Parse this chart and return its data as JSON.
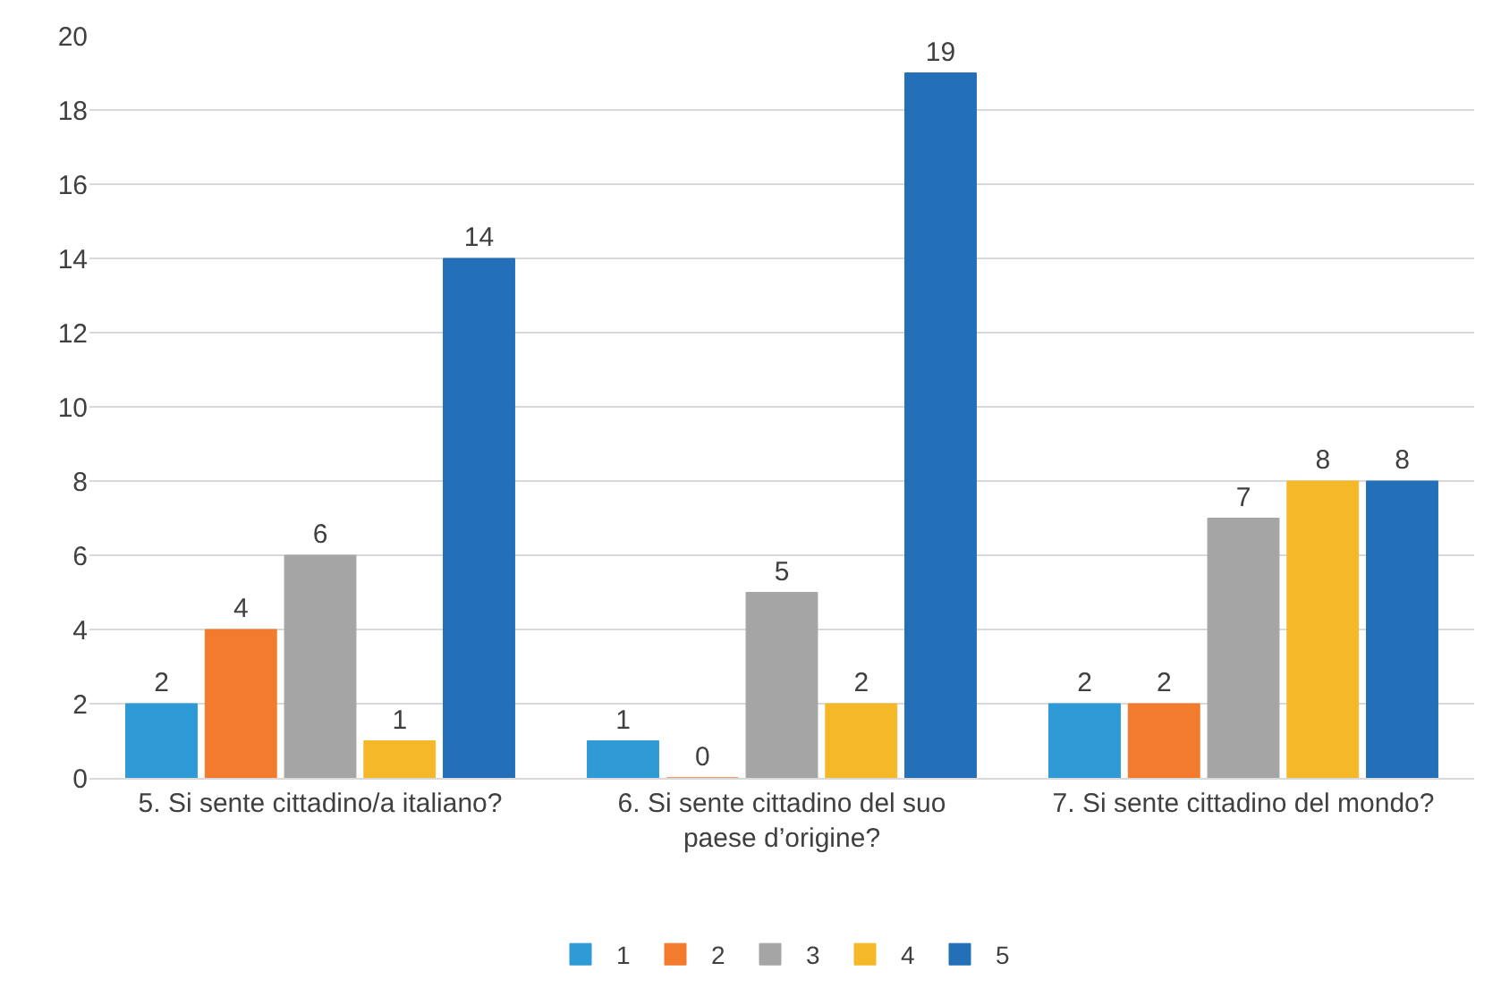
{
  "chart_data": {
    "type": "bar",
    "categories": [
      "5. Si sente cittadino/a italiano?",
      "6. Si sente cittadino del suo paese d’origine?",
      "7. Si sente cittadino del mondo?"
    ],
    "series": [
      {
        "name": "1",
        "color": "#2e9bd6",
        "values": [
          2,
          1,
          2
        ]
      },
      {
        "name": "2",
        "color": "#f27b2e",
        "values": [
          4,
          0,
          2
        ]
      },
      {
        "name": "3",
        "color": "#a5a5a5",
        "values": [
          6,
          5,
          7
        ]
      },
      {
        "name": "4",
        "color": "#f5b828",
        "values": [
          1,
          2,
          8
        ]
      },
      {
        "name": "5",
        "color": "#2470b8",
        "values": [
          14,
          19,
          8
        ]
      }
    ],
    "ylim": [
      0,
      20
    ],
    "yticks": [
      0,
      2,
      4,
      6,
      8,
      10,
      12,
      14,
      16,
      18,
      20
    ],
    "grid": "y",
    "legend": "bottom",
    "data_labels": true
  }
}
